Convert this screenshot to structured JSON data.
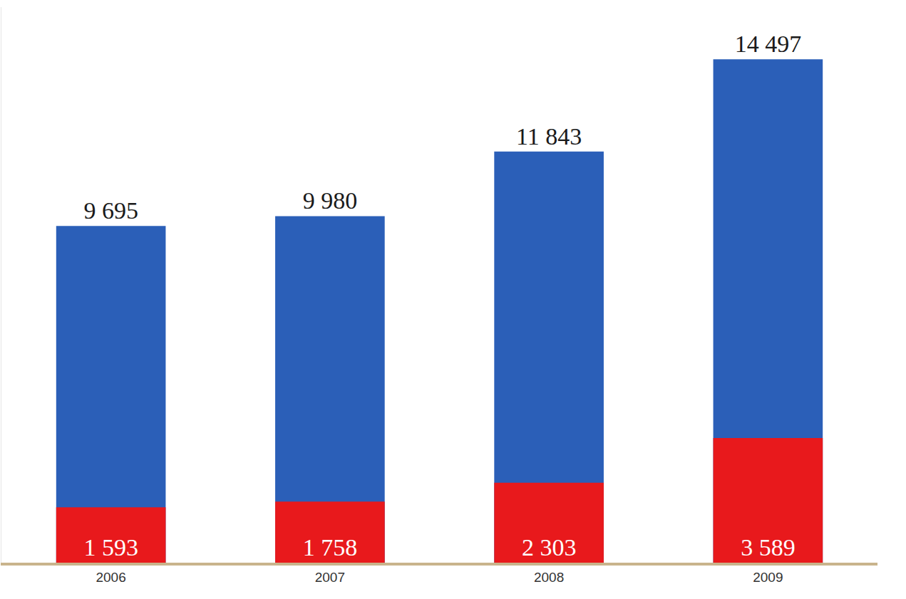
{
  "chart_data": {
    "type": "bar",
    "categories": [
      "2006",
      "2007",
      "2008",
      "2009"
    ],
    "series": [
      {
        "color": "#2b5fb8",
        "values": [
          9695,
          9980,
          11843,
          14497
        ],
        "value_labels": [
          "9 695",
          "9 980",
          "11 843",
          "14 497"
        ]
      },
      {
        "color": "#e8191c",
        "values": [
          1593,
          1758,
          2303,
          3589
        ],
        "value_labels": [
          "1 593",
          "1 758",
          "2 303",
          "3 589"
        ]
      }
    ],
    "ylim": [
      0,
      16000
    ],
    "data_labels": true,
    "tick_labels": "x",
    "grid": false
  }
}
